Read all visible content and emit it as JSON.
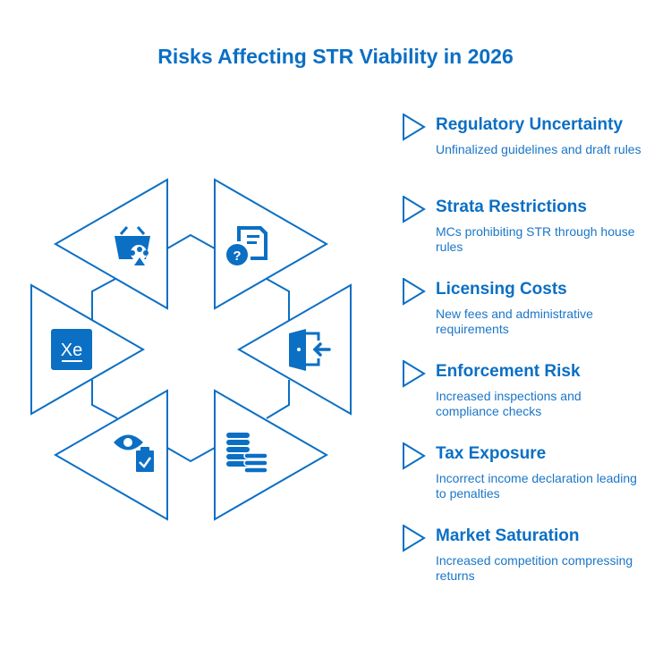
{
  "title": "Risks Affecting STR Viability in 2026",
  "colors": {
    "accent": "#0b6fc4",
    "background": "#ffffff"
  },
  "icons": [
    "basket-paw-icon",
    "document-question-icon",
    "xe-currency-icon",
    "door-enter-icon",
    "eye-clipboard-icon",
    "coin-stacks-icon"
  ],
  "items": [
    {
      "heading": "Regulatory Uncertainty",
      "description": "Unfinalized guidelines and draft rules"
    },
    {
      "heading": "Strata Restrictions",
      "description": "MCs prohibiting STR through house rules"
    },
    {
      "heading": "Licensing Costs",
      "description": "New fees and administrative requirements"
    },
    {
      "heading": "Enforcement Risk",
      "description": "Increased inspections and compliance checks"
    },
    {
      "heading": "Tax Exposure",
      "description": "Incorrect income declaration leading to penalties"
    },
    {
      "heading": "Market Saturation",
      "description": "Increased competition compressing returns"
    }
  ]
}
